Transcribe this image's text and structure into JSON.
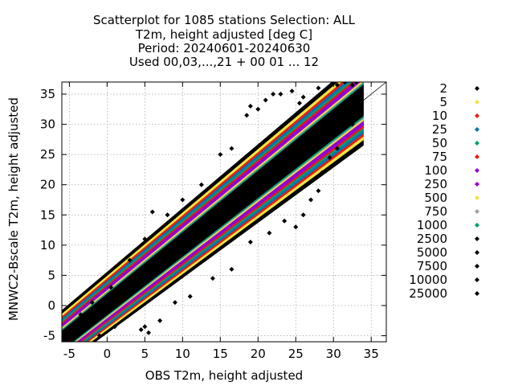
{
  "chart_data": {
    "type": "scatter",
    "title_lines": [
      "Scatterplot for 1085 stations Selection: ALL",
      "T2m, height adjusted [deg C]",
      "Period: 20240601-20240630",
      "Used 00,03,...,21 + 00 01 ... 12"
    ],
    "xlabel": "OBS T2m, height adjusted",
    "ylabel": "MNWC2-Bscale T2m, height adjusted",
    "xlim": [
      -6,
      37
    ],
    "ylim": [
      -6,
      37
    ],
    "xticks": [
      -5,
      0,
      5,
      10,
      15,
      20,
      25,
      30,
      35
    ],
    "yticks": [
      -5,
      0,
      5,
      10,
      15,
      20,
      25,
      30,
      35
    ],
    "grid": true,
    "diagonal": [
      [
        -6,
        -6
      ],
      [
        37,
        37
      ]
    ],
    "legend_position": "right",
    "legend": [
      {
        "label": "2",
        "color": "#000000"
      },
      {
        "label": "5",
        "color": "#f0e442"
      },
      {
        "label": "10",
        "color": "#e51e10"
      },
      {
        "label": "25",
        "color": "#0072b2"
      },
      {
        "label": "50",
        "color": "#009e73"
      },
      {
        "label": "75",
        "color": "#e51e10"
      },
      {
        "label": "100",
        "color": "#9400d3"
      },
      {
        "label": "250",
        "color": "#9400d3"
      },
      {
        "label": "500",
        "color": "#f0e442"
      },
      {
        "label": "750",
        "color": "#a0a0a0"
      },
      {
        "label": "1000",
        "color": "#009e73"
      },
      {
        "label": "2500",
        "color": "#000000"
      },
      {
        "label": "5000",
        "color": "#000000"
      },
      {
        "label": "7500",
        "color": "#000000"
      },
      {
        "label": "10000",
        "color": "#000000"
      },
      {
        "label": "25000",
        "color": "#000000"
      }
    ],
    "density_bands": [
      {
        "level": 2,
        "color": "#000000",
        "halfwidth": 7.5
      },
      {
        "level": 5,
        "color": "#f0e442",
        "halfwidth": 6.6
      },
      {
        "level": 10,
        "color": "#e51e10",
        "halfwidth": 6.0
      },
      {
        "level": 25,
        "color": "#0072b2",
        "halfwidth": 5.5
      },
      {
        "level": 50,
        "color": "#009e73",
        "halfwidth": 5.0
      },
      {
        "level": 75,
        "color": "#e51e10",
        "halfwidth": 4.6
      },
      {
        "level": 100,
        "color": "#9400d3",
        "halfwidth": 4.2
      },
      {
        "level": 250,
        "color": "#9400d3",
        "halfwidth": 3.7
      },
      {
        "level": 500,
        "color": "#f0e442",
        "halfwidth": 3.4
      },
      {
        "level": 750,
        "color": "#a0a0a0",
        "halfwidth": 3.1
      },
      {
        "level": 1000,
        "color": "#009e73",
        "halfwidth": 2.9
      },
      {
        "level": 2500,
        "color": "#000000",
        "halfwidth": 2.6
      }
    ],
    "data_extent_x": [
      -6,
      34
    ],
    "outlier_points": [
      {
        "x": -5.5,
        "y": -5.2
      },
      {
        "x": -4.8,
        "y": -3.5
      },
      {
        "x": -3.5,
        "y": -1.5
      },
      {
        "x": -2.0,
        "y": 0.5
      },
      {
        "x": 0.5,
        "y": 3.0
      },
      {
        "x": 3.0,
        "y": 7.5
      },
      {
        "x": 5.0,
        "y": 11.0
      },
      {
        "x": 6.0,
        "y": 15.5
      },
      {
        "x": 8.0,
        "y": 15.0
      },
      {
        "x": 10.0,
        "y": 17.5
      },
      {
        "x": 12.5,
        "y": 20.0
      },
      {
        "x": 15.0,
        "y": 25.0
      },
      {
        "x": 16.5,
        "y": 26.0
      },
      {
        "x": 18.5,
        "y": 31.5
      },
      {
        "x": 19.0,
        "y": 33.0
      },
      {
        "x": 20.0,
        "y": 32.5
      },
      {
        "x": 21.0,
        "y": 34.0
      },
      {
        "x": 22.0,
        "y": 35.0
      },
      {
        "x": 23.0,
        "y": 35.0
      },
      {
        "x": 24.5,
        "y": 35.5
      },
      {
        "x": 25.5,
        "y": 33.5
      },
      {
        "x": 26.0,
        "y": 34.5
      },
      {
        "x": 28.0,
        "y": 36.0
      },
      {
        "x": 30.5,
        "y": 36.5
      },
      {
        "x": 31.5,
        "y": 37.0
      },
      {
        "x": 32.5,
        "y": 36.5
      },
      {
        "x": 33.0,
        "y": 37.0
      },
      {
        "x": 4.5,
        "y": -4.0
      },
      {
        "x": 5.0,
        "y": -3.5
      },
      {
        "x": 5.5,
        "y": -4.5
      },
      {
        "x": 7.0,
        "y": -2.5
      },
      {
        "x": 9.0,
        "y": 0.5
      },
      {
        "x": 11.0,
        "y": 1.5
      },
      {
        "x": 14.0,
        "y": 4.5
      },
      {
        "x": 16.5,
        "y": 6.0
      },
      {
        "x": 19.0,
        "y": 10.5
      },
      {
        "x": 21.5,
        "y": 12.0
      },
      {
        "x": 23.5,
        "y": 14.0
      },
      {
        "x": 25.0,
        "y": 13.0
      },
      {
        "x": 26.0,
        "y": 15.0
      },
      {
        "x": 27.0,
        "y": 17.5
      },
      {
        "x": 28.0,
        "y": 19.0
      },
      {
        "x": 28.5,
        "y": 22.0
      },
      {
        "x": 29.5,
        "y": 24.5
      },
      {
        "x": 30.5,
        "y": 26.0
      },
      {
        "x": 32.5,
        "y": 30.0
      },
      {
        "x": -1.0,
        "y": -5.0
      },
      {
        "x": 1.0,
        "y": -3.5
      }
    ]
  }
}
